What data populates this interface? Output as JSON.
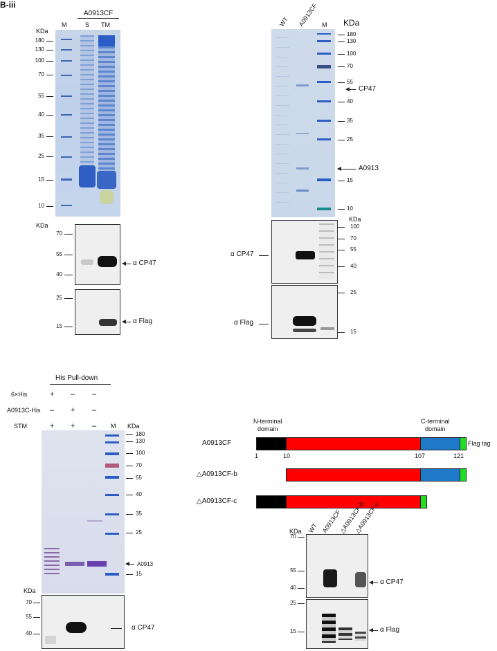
{
  "panel_label": "B-iii",
  "panel_a": {
    "group_label": "A0913CF",
    "lanes": [
      "M",
      "S",
      "TM"
    ],
    "kda_label": "KDa",
    "markers": [
      "180",
      "130",
      "100",
      "70",
      "55",
      "40",
      "35",
      "25",
      "15",
      "10"
    ],
    "wb_kda_label": "KDa",
    "wb1_markers": [
      "70",
      "55",
      "40"
    ],
    "wb1_antibody": "α CP47",
    "wb2_markers": [
      "25",
      "15"
    ],
    "wb2_antibody": "α Flag"
  },
  "panel_b": {
    "lanes": [
      "WT",
      "A0913CF",
      "M"
    ],
    "kda_label": "KDa",
    "markers": [
      "180",
      "130",
      "100",
      "70",
      "55",
      "40",
      "35",
      "25",
      "15",
      "10"
    ],
    "label_cp47": "CP47",
    "label_a0913": "A0913",
    "wb_kda_label": "KDa",
    "wb1_markers": [
      "100",
      "70",
      "55",
      "40"
    ],
    "wb1_antibody": "α CP47",
    "wb2_markers": [
      "25",
      "15"
    ],
    "wb2_antibody": "α Flag"
  },
  "panel_c": {
    "title": "His Pull-down",
    "rows": [
      {
        "label": "6×His",
        "signs": [
          "+",
          "–",
          "–"
        ]
      },
      {
        "label": "A0913C-His",
        "signs": [
          "–",
          "+",
          "–"
        ]
      },
      {
        "label": "STM",
        "signs": [
          "+",
          "+",
          "–"
        ]
      }
    ],
    "lane_m": "M",
    "kda_label": "KDa",
    "markers": [
      "180",
      "130",
      "100",
      "70",
      "55",
      "40",
      "35",
      "25",
      "15"
    ],
    "label_a0913": "A0913",
    "wb_kda_label": "KDa",
    "wb_markers": [
      "70",
      "55",
      "40"
    ],
    "wb_antibody": "α CP47"
  },
  "panel_d": {
    "n_terminal": "N-terminal\ndomain",
    "c_terminal": "C-terminal\ndomain",
    "construct_full": "A0913CF",
    "construct_b": "△A0913CF-b",
    "construct_c": "△A0913CF-c",
    "flag_tag": "Flag tag",
    "positions": [
      "1",
      "10",
      "107",
      "121"
    ],
    "colors": {
      "n_domain": "#000000",
      "middle": "#ff0000",
      "c_domain": "#1f78c8",
      "flag": "#22dd22"
    }
  },
  "panel_e": {
    "kda_label": "KDa",
    "lanes": [
      "WT",
      "A0913CF",
      "△A0913CF-b",
      "△A0913CF-c"
    ],
    "wb1_markers": [
      "70",
      "55",
      "40"
    ],
    "wb1_antibody": "α CP47",
    "wb2_markers": [
      "25",
      "15"
    ],
    "wb2_antibody": "α Flag"
  }
}
